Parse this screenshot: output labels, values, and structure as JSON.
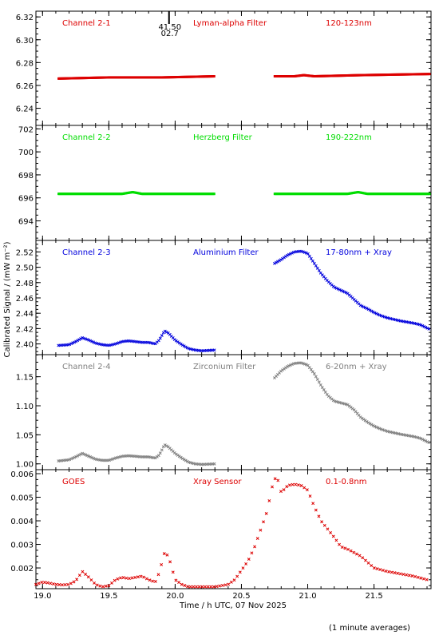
{
  "figure": {
    "ylabel": "Calibrated Signal / (mW m⁻²)",
    "xlabel": "Time / h UTC, 07 Nov 2025",
    "footnote": "(1 minute averages)",
    "marker_labels": [
      "41.50",
      "02.7"
    ]
  },
  "chart_data": [
    {
      "type": "scatter",
      "labels": [
        "Channel 2-1",
        "Lyman-alpha Filter",
        "120-123nm"
      ],
      "color": "#dd0000",
      "xlim": [
        18.95,
        21.93
      ],
      "ylim": [
        6.225,
        6.325
      ],
      "yticks": [
        6.24,
        6.26,
        6.28,
        6.3,
        6.32
      ],
      "ytick_labels": [
        "6.24",
        "6.26",
        "6.28",
        "6.30",
        "6.32"
      ],
      "series": [
        {
          "x": [
            19.12,
            19.5,
            19.9,
            20.3
          ],
          "y": [
            6.266,
            6.267,
            6.267,
            6.268
          ]
        },
        {
          "x": [
            20.75,
            20.9,
            20.97,
            21.05,
            21.4,
            21.92
          ],
          "y": [
            6.268,
            6.268,
            6.269,
            6.268,
            6.269,
            6.27
          ]
        }
      ]
    },
    {
      "type": "scatter",
      "labels": [
        "Channel 2-2",
        "Herzberg Filter",
        "190-222nm"
      ],
      "color": "#00dd00",
      "xlim": [
        18.95,
        21.93
      ],
      "ylim": [
        692.3,
        702.3
      ],
      "yticks": [
        694,
        696,
        698,
        700,
        702
      ],
      "ytick_labels": [
        "694",
        "696",
        "698",
        "700",
        "702"
      ],
      "series": [
        {
          "x": [
            19.12,
            19.6,
            19.68,
            19.75,
            20.3
          ],
          "y": [
            696.35,
            696.35,
            696.5,
            696.35,
            696.35
          ]
        },
        {
          "x": [
            20.75,
            21.1,
            21.3,
            21.38,
            21.45,
            21.92
          ],
          "y": [
            696.35,
            696.35,
            696.35,
            696.5,
            696.35,
            696.35
          ]
        }
      ]
    },
    {
      "type": "scatter",
      "labels": [
        "Channel 2-3",
        "Aluminium Filter",
        "17-80nm + Xray"
      ],
      "color": "#0000dd",
      "xlim": [
        18.95,
        21.93
      ],
      "ylim": [
        2.386,
        2.535
      ],
      "yticks": [
        2.4,
        2.42,
        2.44,
        2.46,
        2.48,
        2.5,
        2.52
      ],
      "ytick_labels": [
        "2.40",
        "2.42",
        "2.44",
        "2.46",
        "2.48",
        "2.50",
        "2.52"
      ],
      "series": [
        {
          "x": [
            19.12,
            19.2,
            19.25,
            19.3,
            19.35,
            19.4,
            19.45,
            19.5,
            19.55,
            19.6,
            19.65,
            19.7,
            19.75,
            19.8,
            19.85,
            19.88,
            19.92,
            19.95,
            20.0,
            20.05,
            20.1,
            20.15,
            20.2,
            20.3
          ],
          "y": [
            2.398,
            2.399,
            2.403,
            2.408,
            2.405,
            2.401,
            2.399,
            2.398,
            2.4,
            2.403,
            2.404,
            2.403,
            2.402,
            2.402,
            2.4,
            2.405,
            2.417,
            2.414,
            2.405,
            2.399,
            2.394,
            2.392,
            2.391,
            2.392
          ]
        },
        {
          "x": [
            20.75,
            20.8,
            20.85,
            20.9,
            20.95,
            21.0,
            21.05,
            21.1,
            21.15,
            21.2,
            21.25,
            21.3,
            21.35,
            21.4,
            21.45,
            21.5,
            21.55,
            21.6,
            21.7,
            21.8,
            21.85,
            21.92
          ],
          "y": [
            2.505,
            2.51,
            2.516,
            2.52,
            2.521,
            2.518,
            2.505,
            2.492,
            2.482,
            2.474,
            2.47,
            2.466,
            2.458,
            2.45,
            2.446,
            2.441,
            2.437,
            2.434,
            2.43,
            2.427,
            2.425,
            2.419
          ]
        }
      ]
    },
    {
      "type": "scatter",
      "labels": [
        "Channel 2-4",
        "Zirconium Filter",
        "6-20nm + Xray"
      ],
      "color": "#808080",
      "xlim": [
        18.95,
        21.93
      ],
      "ylim": [
        0.99,
        1.188
      ],
      "yticks": [
        1.0,
        1.05,
        1.1,
        1.15
      ],
      "ytick_labels": [
        "1.00",
        "1.05",
        "1.10",
        "1.15"
      ],
      "series": [
        {
          "x": [
            19.12,
            19.2,
            19.25,
            19.3,
            19.35,
            19.4,
            19.45,
            19.5,
            19.55,
            19.6,
            19.65,
            19.7,
            19.75,
            19.8,
            19.85,
            19.88,
            19.92,
            19.95,
            20.0,
            20.05,
            20.1,
            20.15,
            20.2,
            20.3
          ],
          "y": [
            1.005,
            1.007,
            1.012,
            1.018,
            1.013,
            1.008,
            1.006,
            1.006,
            1.01,
            1.013,
            1.014,
            1.013,
            1.012,
            1.012,
            1.01,
            1.015,
            1.033,
            1.029,
            1.018,
            1.01,
            1.003,
            1.0,
            0.999,
            1.0
          ]
        },
        {
          "x": [
            20.75,
            20.8,
            20.85,
            20.9,
            20.95,
            21.0,
            21.05,
            21.1,
            21.15,
            21.2,
            21.25,
            21.3,
            21.35,
            21.4,
            21.45,
            21.5,
            21.55,
            21.6,
            21.7,
            21.8,
            21.85,
            21.92
          ],
          "y": [
            1.148,
            1.16,
            1.168,
            1.173,
            1.174,
            1.17,
            1.155,
            1.135,
            1.118,
            1.108,
            1.105,
            1.102,
            1.093,
            1.08,
            1.072,
            1.065,
            1.06,
            1.056,
            1.051,
            1.047,
            1.044,
            1.036
          ]
        }
      ]
    },
    {
      "type": "scatter",
      "labels": [
        "GOES",
        "Xray Sensor",
        "0.1-0.8nm"
      ],
      "color": "#dd0000",
      "xlim": [
        18.95,
        21.93
      ],
      "ylim": [
        0.00112,
        0.00617
      ],
      "yticks": [
        0.002,
        0.003,
        0.004,
        0.005,
        0.006
      ],
      "ytick_labels": [
        "0.002",
        "0.003",
        "0.004",
        "0.005",
        "0.006"
      ],
      "xticks": [
        19.0,
        19.5,
        20.0,
        20.5,
        21.0,
        21.5
      ],
      "xtick_labels": [
        "19.0",
        "19.5",
        "20.0",
        "20.5",
        "21.0",
        "21.5"
      ],
      "series": [
        {
          "x": [
            18.95,
            19.0,
            19.05,
            19.1,
            19.15,
            19.2,
            19.25,
            19.3,
            19.35,
            19.4,
            19.45,
            19.5,
            19.55,
            19.6,
            19.65,
            19.7,
            19.75,
            19.8,
            19.85,
            19.88,
            19.92,
            19.95,
            20.0,
            20.05,
            20.1,
            20.2,
            20.3,
            20.4,
            20.45,
            20.5,
            20.55,
            20.6,
            20.65,
            20.7,
            20.72,
            20.75,
            20.78,
            20.8,
            20.85,
            20.9,
            20.95,
            21.0,
            21.05,
            21.1,
            21.2,
            21.25,
            21.3,
            21.4,
            21.5,
            21.6,
            21.7,
            21.8,
            21.9
          ],
          "y": [
            0.0013,
            0.0014,
            0.00136,
            0.0013,
            0.00128,
            0.0013,
            0.00145,
            0.00185,
            0.0016,
            0.0013,
            0.0012,
            0.00125,
            0.0015,
            0.0016,
            0.00155,
            0.0016,
            0.00165,
            0.0015,
            0.0014,
            0.0018,
            0.00265,
            0.0025,
            0.0015,
            0.0013,
            0.0012,
            0.0012,
            0.0012,
            0.0013,
            0.0015,
            0.0019,
            0.0023,
            0.0029,
            0.0037,
            0.0045,
            0.0052,
            0.0058,
            0.0057,
            0.0052,
            0.0055,
            0.00555,
            0.0055,
            0.0053,
            0.0046,
            0.004,
            0.0033,
            0.0029,
            0.0028,
            0.0025,
            0.002,
            0.00185,
            0.00175,
            0.00165,
            0.0015
          ]
        }
      ]
    }
  ]
}
